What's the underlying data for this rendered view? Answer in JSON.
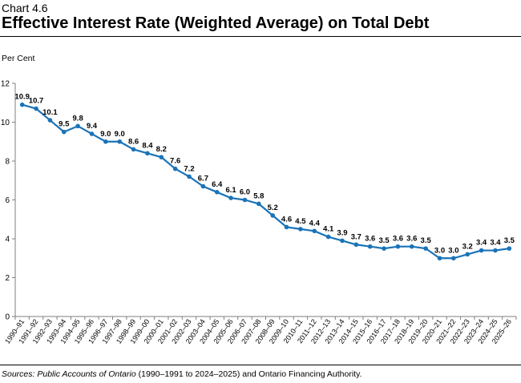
{
  "header": {
    "chart_number": "Chart 4.6",
    "title": "Effective Interest Rate (Weighted Average) on Total Debt"
  },
  "footer": {
    "source_italic": "Sources: Public Accounts of Ontario",
    "source_rest": " (1990–1991 to 2024–2025) and Ontario Financing Authority."
  },
  "colors": {
    "line": "#1a73b8",
    "axis": "#7f7f7f"
  },
  "chart_data": {
    "type": "line",
    "title": "Effective Interest Rate (Weighted Average) on Total Debt",
    "ylabel": "Per Cent",
    "xlabel": "",
    "ylim": [
      0,
      12
    ],
    "yticks": [
      0,
      2,
      4,
      6,
      8,
      10,
      12
    ],
    "grid": false,
    "categories": [
      "1990–91",
      "1991–92",
      "1992–93",
      "1993–94",
      "1994–95",
      "1995–96",
      "1996–97",
      "1997–98",
      "1998–99",
      "1999–00",
      "2000–01",
      "2001–02",
      "2002–03",
      "2003–04",
      "2004–05",
      "2005–06",
      "2006–07",
      "2007–08",
      "2008–09",
      "2009–10",
      "2010–11",
      "2011–12",
      "2012–13",
      "2013–14",
      "2014–15",
      "2015–16",
      "2016–17",
      "2017–18",
      "2018–19",
      "2019–20",
      "2020–21",
      "2021–22",
      "2022–23",
      "2023–24",
      "2024–25",
      "2025–26"
    ],
    "values": [
      10.9,
      10.7,
      10.1,
      9.5,
      9.8,
      9.4,
      9.0,
      9.0,
      8.6,
      8.4,
      8.2,
      7.6,
      7.2,
      6.7,
      6.4,
      6.1,
      6.0,
      5.8,
      5.2,
      4.6,
      4.5,
      4.4,
      4.1,
      3.9,
      3.7,
      3.6,
      3.5,
      3.6,
      3.6,
      3.5,
      3.0,
      3.0,
      3.2,
      3.4,
      3.4,
      3.5
    ],
    "labels": [
      "10.9",
      "10.7",
      "10.1",
      "9.5",
      "9.8",
      "9.4",
      "9.0",
      "9.0",
      "8.6",
      "8.4",
      "8.2",
      "7.6",
      "7.2",
      "6.7",
      "6.4",
      "6.1",
      "6.0",
      "5.8",
      "5.2",
      "4.6",
      "4.5",
      "4.4",
      "4.1",
      "3.9",
      "3.7",
      "3.6",
      "3.5",
      "3.6",
      "3.6",
      "3.5",
      "3.0",
      "3.0",
      "3.2",
      "3.4",
      "3.4",
      "3.5"
    ]
  }
}
